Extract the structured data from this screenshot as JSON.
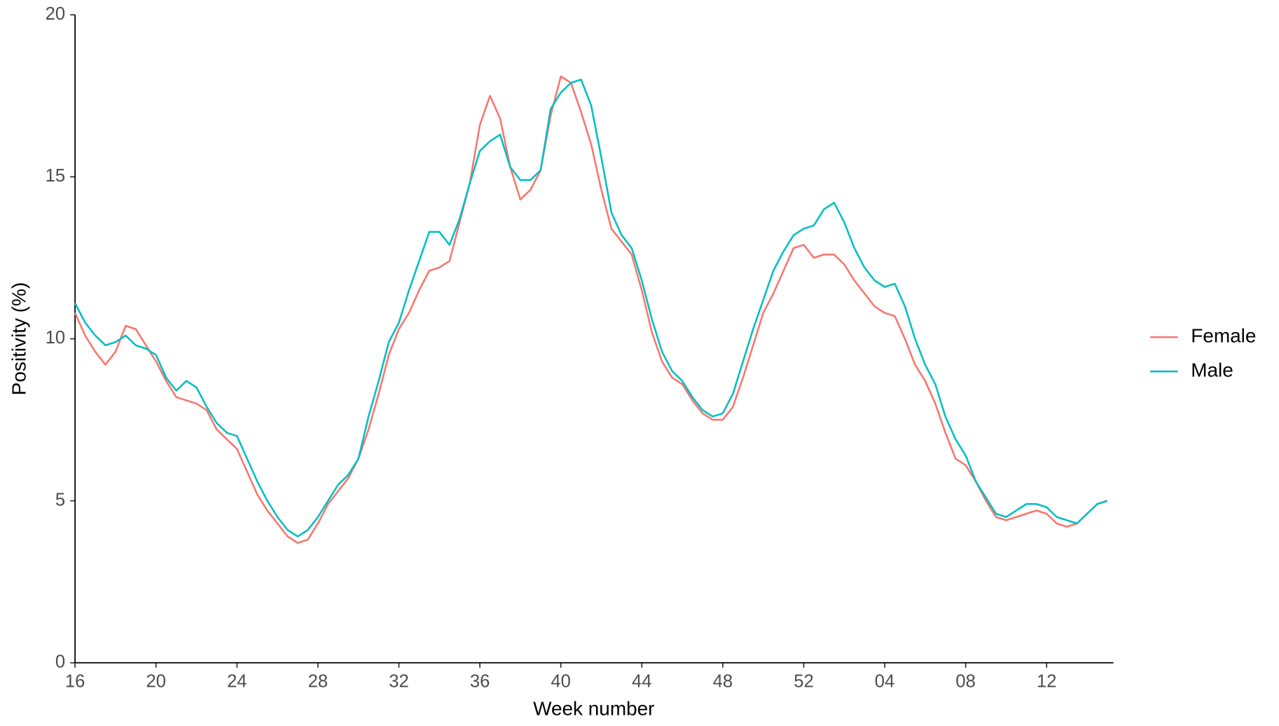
{
  "chart_data": {
    "type": "line",
    "x_label": "Week number",
    "y_label": "Positivity (%)",
    "x": [
      16,
      16.5,
      17,
      17.5,
      18,
      18.5,
      19,
      19.5,
      20,
      20.5,
      21,
      21.5,
      22,
      22.5,
      23,
      23.5,
      24,
      24.5,
      25,
      25.5,
      26,
      26.5,
      27,
      27.5,
      28,
      28.5,
      29,
      29.5,
      30,
      30.5,
      31,
      31.5,
      32,
      32.5,
      33,
      33.5,
      34,
      34.5,
      35,
      35.5,
      36,
      36.5,
      37,
      37.5,
      38,
      38.5,
      39,
      39.5,
      40,
      40.5,
      41,
      41.5,
      42,
      42.5,
      43,
      43.5,
      44,
      44.5,
      45,
      45.5,
      46,
      46.5,
      47,
      47.5,
      48,
      48.5,
      49,
      49.5,
      50,
      50.5,
      51,
      51.5,
      52,
      52.5,
      53,
      53.5,
      54,
      54.5,
      55,
      55.5,
      56,
      56.5,
      57,
      57.5,
      58,
      58.5,
      59,
      59.5,
      60,
      60.5,
      61,
      61.5,
      62,
      62.5,
      63,
      63.5,
      64,
      64.5,
      65,
      65.5,
      66,
      66.5,
      67
    ],
    "series": [
      {
        "name": "Female",
        "color": "#F8766D",
        "values": [
          10.8,
          10.1,
          9.6,
          9.2,
          9.6,
          10.4,
          10.3,
          9.8,
          9.3,
          8.7,
          8.2,
          8.1,
          8.0,
          7.8,
          7.2,
          6.9,
          6.6,
          5.9,
          5.2,
          4.7,
          4.3,
          3.9,
          3.7,
          3.8,
          4.3,
          4.9,
          5.3,
          5.7,
          6.3,
          7.2,
          8.3,
          9.5,
          10.3,
          10.8,
          11.5,
          12.1,
          12.2,
          12.4,
          13.6,
          14.8,
          16.6,
          17.5,
          16.8,
          15.3,
          14.3,
          14.6,
          15.2,
          16.9,
          18.1,
          17.9,
          17.0,
          16.0,
          14.6,
          13.4,
          13.0,
          12.6,
          11.5,
          10.2,
          9.3,
          8.8,
          8.6,
          8.1,
          7.7,
          7.5,
          7.5,
          7.9,
          8.8,
          9.8,
          10.8,
          11.4,
          12.1,
          12.8,
          12.9,
          12.5,
          12.6,
          12.6,
          12.3,
          11.8,
          11.4,
          11.0,
          10.8,
          10.7,
          10.0,
          9.2,
          8.7,
          8.0,
          7.1,
          6.3,
          6.1,
          5.6,
          5.0,
          4.5,
          4.4,
          4.5,
          4.6,
          4.7,
          4.6,
          4.3,
          4.2,
          4.3,
          4.6,
          4.9,
          5.0
        ]
      },
      {
        "name": "Male",
        "color": "#00BFC4",
        "values": [
          11.1,
          10.5,
          10.1,
          9.8,
          9.9,
          10.1,
          9.8,
          9.7,
          9.5,
          8.8,
          8.4,
          8.7,
          8.5,
          7.9,
          7.4,
          7.1,
          7.0,
          6.3,
          5.6,
          5.0,
          4.5,
          4.1,
          3.9,
          4.1,
          4.5,
          5.0,
          5.5,
          5.8,
          6.3,
          7.6,
          8.7,
          9.9,
          10.5,
          11.5,
          12.4,
          13.3,
          13.3,
          12.9,
          13.7,
          14.8,
          15.8,
          16.1,
          16.3,
          15.3,
          14.9,
          14.9,
          15.2,
          17.1,
          17.6,
          17.9,
          18.0,
          17.2,
          15.6,
          13.9,
          13.2,
          12.8,
          11.8,
          10.6,
          9.6,
          9.0,
          8.7,
          8.2,
          7.8,
          7.6,
          7.7,
          8.3,
          9.3,
          10.3,
          11.2,
          12.1,
          12.7,
          13.2,
          13.4,
          13.5,
          14.0,
          14.2,
          13.6,
          12.8,
          12.2,
          11.8,
          11.6,
          11.7,
          11.0,
          10.0,
          9.2,
          8.6,
          7.6,
          6.9,
          6.4,
          5.6,
          5.1,
          4.6,
          4.5,
          4.7,
          4.9,
          4.9,
          4.8,
          4.5,
          4.4,
          4.3,
          4.6,
          4.9,
          5.0
        ]
      }
    ],
    "xlim": [
      16,
      67.3
    ],
    "xticks": [
      16,
      20,
      24,
      28,
      32,
      36,
      40,
      44,
      48,
      52,
      {
        "value": 56,
        "label": "04"
      },
      {
        "value": 60,
        "label": "08"
      },
      {
        "value": 64,
        "label": "12"
      }
    ],
    "ylim": [
      0,
      20
    ],
    "yticks": [
      0,
      5,
      10,
      15,
      20
    ],
    "grid": false,
    "legend": "right"
  }
}
